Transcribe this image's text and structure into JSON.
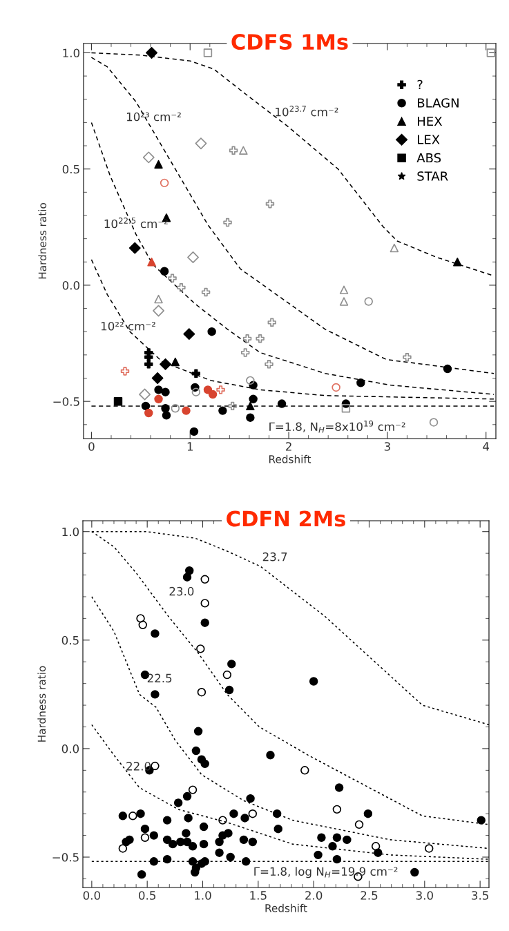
{
  "chart_data": [
    {
      "type": "scatter",
      "title": "CDFS 1Ms",
      "xlabel": "Redshift",
      "ylabel": "Hardness ratio",
      "xlim": [
        -0.08,
        4.1
      ],
      "ylim": [
        -0.66,
        1.04
      ],
      "xticks": [
        0,
        1,
        2,
        3,
        4
      ],
      "yticks": [
        {
          "value": 1.0,
          "label": "1.0"
        },
        {
          "value": 0.5,
          "label": "0.5"
        },
        {
          "value": 0.0,
          "label": "0.0"
        },
        {
          "value": -0.5,
          "label": "−0.5"
        }
      ],
      "legend": "top right",
      "grid": false,
      "series": [
        {
          "type": "line",
          "color": "#000000",
          "line_style": "dashed",
          "marker": "none",
          "x": [
            0,
            0.5,
            1.0,
            1.24,
            1.57,
            2.0,
            2.5,
            2.96,
            3.1,
            3.5,
            4.08
          ],
          "values": [
            1.0,
            0.99,
            0.965,
            0.93,
            0.82,
            0.68,
            0.5,
            0.25,
            0.19,
            0.12,
            0.04
          ]
        },
        {
          "type": "line",
          "color": "#000000",
          "line_style": "dashed",
          "marker": "none",
          "x": [
            0,
            0.16,
            0.45,
            0.85,
            1.18,
            1.51,
            2.04,
            2.37,
            2.99,
            3.36,
            4.08
          ],
          "values": [
            0.98,
            0.94,
            0.79,
            0.5,
            0.26,
            0.07,
            -0.09,
            -0.19,
            -0.32,
            -0.34,
            -0.38
          ]
        },
        {
          "type": "line",
          "color": "#000000",
          "line_style": "dashed",
          "marker": "none",
          "x": [
            0,
            0.19,
            0.45,
            0.62,
            1.05,
            1.38,
            1.71,
            2.37,
            3.03,
            4.08
          ],
          "values": [
            0.7,
            0.47,
            0.22,
            0.09,
            -0.08,
            -0.19,
            -0.29,
            -0.38,
            -0.43,
            -0.47
          ]
        },
        {
          "type": "line",
          "color": "#000000",
          "line_style": "dashed",
          "marker": "none",
          "x": [
            0,
            0.16,
            0.39,
            0.72,
            1.21,
            1.71,
            2.37,
            4.08
          ],
          "values": [
            0.11,
            -0.04,
            -0.2,
            -0.33,
            -0.41,
            -0.45,
            -0.475,
            -0.49
          ]
        },
        {
          "type": "line",
          "color": "#000000",
          "line_style": "dashed",
          "marker": "none",
          "x": [
            0,
            2.0,
            4.08
          ],
          "values": [
            -0.52,
            -0.52,
            -0.52
          ]
        },
        {
          "name": "?",
          "marker": "cross",
          "color": "#000000",
          "x": [
            0.58,
            0.58,
            0.58,
            1.06
          ],
          "values": [
            -0.29,
            -0.31,
            -0.34,
            -0.38
          ]
        },
        {
          "name": "BLAGN",
          "marker": "circle",
          "color": "#000000",
          "x": [
            0.74,
            1.22,
            3.61,
            2.73,
            1.05,
            0.68,
            0.75,
            1.64,
            1.64,
            1.61,
            0.55,
            0.75,
            0.76,
            1.33,
            1.93,
            2.58,
            1.04
          ],
          "values": [
            0.06,
            -0.2,
            -0.36,
            -0.42,
            -0.44,
            -0.45,
            -0.46,
            -0.43,
            -0.49,
            -0.57,
            -0.52,
            -0.53,
            -0.56,
            -0.54,
            -0.51,
            -0.51,
            -0.63
          ]
        },
        {
          "name": "HEX",
          "marker": "triangle",
          "color": "#000000",
          "x": [
            0.68,
            0.76,
            0.85,
            3.71,
            1.61
          ],
          "values": [
            0.52,
            0.29,
            -0.33,
            0.1,
            -0.52
          ]
        },
        {
          "name": "LEX",
          "marker": "diamond",
          "color": "#000000",
          "x": [
            0.61,
            0.44,
            0.99,
            0.75,
            0.67
          ],
          "values": [
            1.0,
            0.16,
            -0.21,
            -0.34,
            -0.4
          ]
        },
        {
          "name": "ABS",
          "marker": "square",
          "color": "#000000",
          "x": [
            0.27
          ],
          "values": [
            -0.5
          ]
        },
        {
          "name": "STAR",
          "marker": "star",
          "color": "#000000"
        },
        {
          "marker": "cross-open",
          "color": "#909090",
          "x": [
            1.44,
            1.81,
            1.38,
            0.82,
            0.91,
            1.16,
            1.83,
            1.58,
            1.71,
            1.56,
            1.8,
            3.2,
            1.43
          ],
          "values": [
            0.58,
            0.35,
            0.27,
            0.03,
            -0.01,
            -0.03,
            -0.16,
            -0.23,
            -0.23,
            -0.29,
            -0.34,
            -0.31,
            -0.52
          ]
        },
        {
          "marker": "circle-open",
          "color": "#909090",
          "x": [
            2.81,
            1.61,
            1.06,
            0.85,
            3.47
          ],
          "values": [
            -0.07,
            -0.41,
            -0.46,
            -0.53,
            -0.59
          ]
        },
        {
          "marker": "triangle-open",
          "color": "#909090",
          "x": [
            1.54,
            0.68,
            3.07,
            2.56,
            2.56
          ],
          "values": [
            0.58,
            -0.06,
            0.16,
            -0.02,
            -0.07
          ]
        },
        {
          "marker": "diamond-open",
          "color": "#909090",
          "x": [
            1.11,
            0.58,
            1.03,
            0.68,
            0.54
          ],
          "values": [
            0.61,
            0.55,
            0.12,
            -0.11,
            -0.47
          ]
        },
        {
          "marker": "square-open",
          "color": "#909090",
          "x": [
            1.18,
            4.05,
            2.58
          ],
          "values": [
            1.0,
            1.0,
            -0.53
          ]
        },
        {
          "marker": "circle",
          "color": "#d8442f",
          "x": [
            1.18,
            1.23,
            0.68,
            0.58,
            0.96
          ],
          "values": [
            -0.45,
            -0.47,
            -0.49,
            -0.55,
            -0.54
          ]
        },
        {
          "marker": "triangle",
          "color": "#d8442f",
          "x": [
            0.61
          ],
          "values": [
            0.1
          ]
        },
        {
          "marker": "cross-open",
          "color": "#e07060",
          "x": [
            0.34,
            1.31
          ],
          "values": [
            -0.37,
            -0.45
          ]
        },
        {
          "marker": "circle-open",
          "color": "#e07060",
          "x": [
            0.74,
            2.48
          ],
          "values": [
            0.44,
            -0.44
          ]
        }
      ],
      "annotations": [
        "10²³ cm⁻²",
        "10$^{23.7}$ cm⁻²",
        "10$^{22.5}$ cm⁻²",
        "10²² cm⁻²",
        "Γ=1.8, N$_{H}$=8x10$^{19}$ cm⁻²"
      ]
    },
    {
      "type": "scatter",
      "title": "CDFN 2Ms",
      "xlabel": "Redshift",
      "ylabel": "Hardness ratio",
      "xlim": [
        -0.08,
        3.58
      ],
      "ylim": [
        -0.64,
        1.05
      ],
      "xticks": [
        {
          "value": 0.0,
          "label": "0.0"
        },
        {
          "value": 0.5,
          "label": "0.5"
        },
        {
          "value": 1.0,
          "label": "1.0"
        },
        {
          "value": 1.5,
          "label": "1.5"
        },
        {
          "value": 2.0,
          "label": "2.0"
        },
        {
          "value": 2.5,
          "label": "2.5"
        },
        {
          "value": 3.0,
          "label": "3.0"
        },
        {
          "value": 3.5,
          "label": "3.5"
        }
      ],
      "yticks": [
        {
          "value": 1.0,
          "label": "1.0"
        },
        {
          "value": 0.5,
          "label": "0.5"
        },
        {
          "value": 0.0,
          "label": "0.0"
        },
        {
          "value": -0.5,
          "label": "−0.5"
        }
      ],
      "grid": false,
      "series": [
        {
          "type": "line",
          "color": "#000000",
          "line_style": "dotted",
          "marker": "none",
          "x": [
            0,
            0.49,
            0.93,
            1.22,
            1.52,
            2.1,
            2.83,
            2.98,
            3.58
          ],
          "values": [
            1.0,
            1.0,
            0.97,
            0.91,
            0.84,
            0.61,
            0.27,
            0.2,
            0.11
          ]
        },
        {
          "type": "line",
          "color": "#000000",
          "line_style": "dotted",
          "marker": "none",
          "x": [
            0,
            0.2,
            0.4,
            0.69,
            0.96,
            1.22,
            1.51,
            1.95,
            2.39,
            2.98,
            3.58
          ],
          "values": [
            1.0,
            0.93,
            0.81,
            0.61,
            0.44,
            0.25,
            0.1,
            -0.03,
            -0.15,
            -0.31,
            -0.35
          ]
        },
        {
          "type": "line",
          "color": "#000000",
          "line_style": "dotted",
          "marker": "none",
          "x": [
            0,
            0.2,
            0.43,
            0.58,
            0.75,
            0.99,
            1.37,
            1.81,
            2.69,
            3.58
          ],
          "values": [
            0.7,
            0.54,
            0.25,
            0.19,
            0.04,
            -0.12,
            -0.24,
            -0.33,
            -0.42,
            -0.46
          ]
        },
        {
          "type": "line",
          "color": "#000000",
          "line_style": "dotted",
          "marker": "none",
          "x": [
            0,
            0.2,
            0.43,
            0.78,
            1.22,
            1.81,
            2.69,
            3.58
          ],
          "values": [
            0.11,
            -0.03,
            -0.18,
            -0.28,
            -0.34,
            -0.44,
            -0.49,
            -0.51
          ]
        },
        {
          "type": "line",
          "color": "#000000",
          "line_style": "dotted",
          "marker": "none",
          "x": [
            0,
            1.8,
            3.58
          ],
          "values": [
            -0.52,
            -0.52,
            -0.52
          ]
        },
        {
          "marker": "circle",
          "color": "#000000",
          "x": [
            0.88,
            0.86,
            1.02,
            0.57,
            1.26,
            0.48,
            2.0,
            1.24,
            0.57,
            0.96,
            0.94,
            0.99,
            1.02,
            1.61,
            0.52,
            2.23,
            0.86,
            0.78,
            1.43,
            0.28,
            0.44,
            0.68,
            0.87,
            1.28,
            1.38,
            1.67,
            2.49,
            3.51,
            1.01,
            0.48,
            1.68,
            0.56,
            0.31,
            0.34,
            0.68,
            0.73,
            0.8,
            0.85,
            0.86,
            0.91,
            1.01,
            1.15,
            1.18,
            1.23,
            1.37,
            1.45,
            2.07,
            2.21,
            2.3,
            2.17,
            2.04,
            2.21,
            2.58,
            1.15,
            1.25,
            1.39,
            0.56,
            0.68,
            0.91,
            0.99,
            1.02,
            0.94,
            0.93,
            0.45,
            2.91
          ],
          "values": [
            0.82,
            0.79,
            0.58,
            0.53,
            0.39,
            0.34,
            0.31,
            0.27,
            0.25,
            0.08,
            -0.01,
            -0.05,
            -0.07,
            -0.03,
            -0.1,
            -0.18,
            -0.22,
            -0.25,
            -0.23,
            -0.31,
            -0.3,
            -0.33,
            -0.32,
            -0.3,
            -0.32,
            -0.3,
            -0.3,
            -0.33,
            -0.36,
            -0.37,
            -0.37,
            -0.4,
            -0.43,
            -0.42,
            -0.42,
            -0.44,
            -0.43,
            -0.39,
            -0.43,
            -0.45,
            -0.44,
            -0.43,
            -0.4,
            -0.39,
            -0.42,
            -0.43,
            -0.41,
            -0.41,
            -0.42,
            -0.45,
            -0.49,
            -0.51,
            -0.48,
            -0.48,
            -0.5,
            -0.52,
            -0.52,
            -0.51,
            -0.52,
            -0.53,
            -0.52,
            -0.55,
            -0.57,
            -0.58,
            -0.57
          ]
        },
        {
          "marker": "circle-open",
          "color": "#000000",
          "x": [
            1.02,
            1.02,
            0.44,
            0.46,
            0.98,
            1.22,
            0.99,
            0.91,
            1.92,
            0.57,
            2.21,
            0.37,
            1.18,
            1.45,
            2.41,
            0.48,
            0.28,
            2.56,
            3.04,
            2.4
          ],
          "values": [
            0.78,
            0.67,
            0.6,
            0.57,
            0.46,
            0.34,
            0.26,
            -0.19,
            -0.1,
            -0.08,
            -0.28,
            -0.31,
            -0.33,
            -0.3,
            -0.35,
            -0.41,
            -0.46,
            -0.45,
            -0.46,
            -0.59
          ]
        }
      ],
      "annotations": [
        "23.7",
        "23.0",
        "22.5",
        "22.0",
        "Γ=1.8, log N$_{H}$=19.9 cm⁻²"
      ]
    }
  ]
}
